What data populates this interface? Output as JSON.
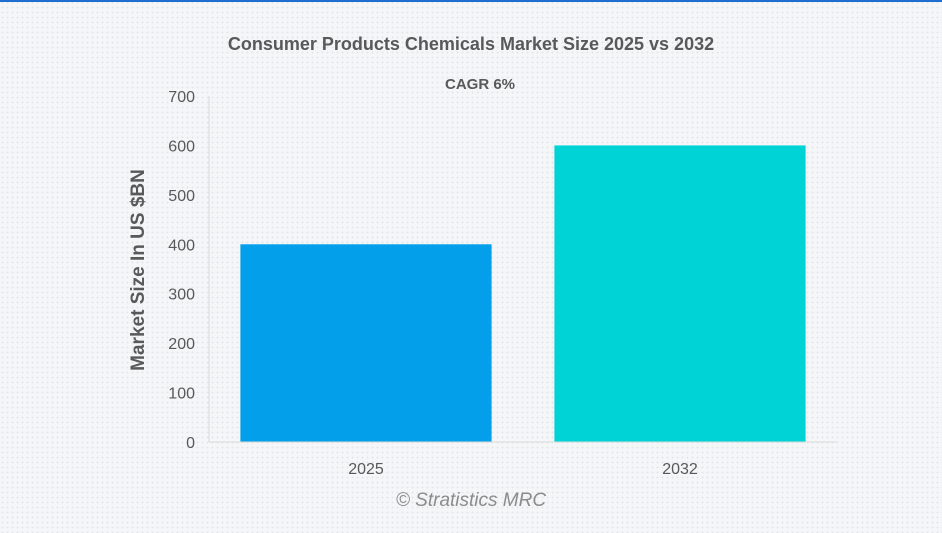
{
  "chart_data": {
    "type": "bar",
    "title": "Consumer Products Chemicals Market Size 2025 vs 2032",
    "subtitle": "CAGR 6%",
    "xlabel": "",
    "ylabel": "Market Size In US $BN",
    "categories": [
      "2025",
      "2032"
    ],
    "values": [
      400,
      600
    ],
    "colors": [
      "#039fea",
      "#00d3d6"
    ],
    "ylim": [
      0,
      700
    ],
    "yticks": [
      0,
      100,
      200,
      300,
      400,
      500,
      600,
      700
    ],
    "grid": false,
    "legend": "none"
  },
  "watermark": "© Stratistics MRC"
}
